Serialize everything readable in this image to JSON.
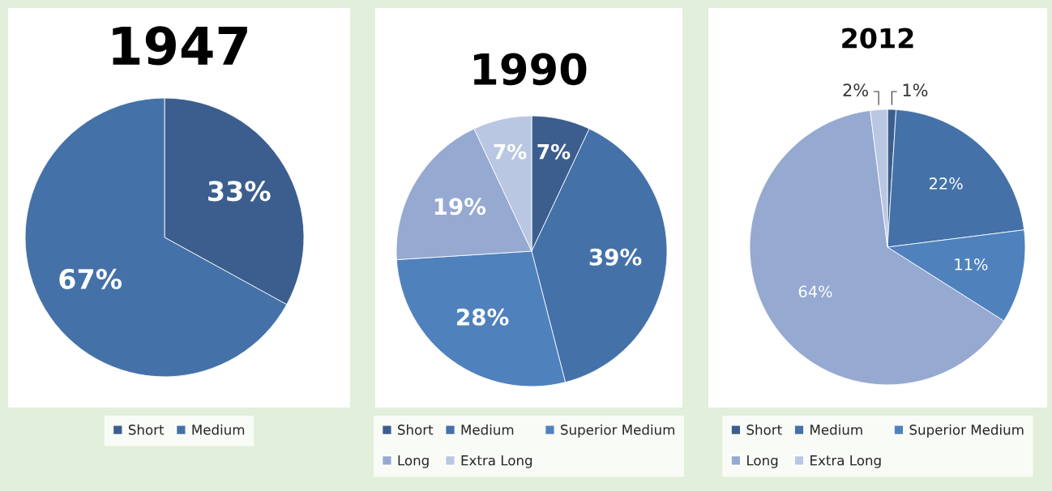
{
  "chart_data": [
    {
      "type": "pie",
      "title": "1947",
      "categories": [
        "Short",
        "Medium"
      ],
      "values": [
        33,
        67
      ],
      "colors": [
        "#3b5e8e",
        "#4471a8"
      ],
      "value_labels": [
        "33%",
        "67%"
      ],
      "legend": "bottom"
    },
    {
      "type": "pie",
      "title": "1990",
      "categories": [
        "Short",
        "Medium",
        "Superior Medium",
        "Long",
        "Extra Long"
      ],
      "values": [
        7,
        39,
        28,
        19,
        7
      ],
      "colors": [
        "#3b5e8e",
        "#4471a8",
        "#4f81bd",
        "#95a9d1",
        "#b9c7e3"
      ],
      "value_labels": [
        "7%",
        "39%",
        "28%",
        "19%",
        "7%"
      ],
      "legend": "bottom"
    },
    {
      "type": "pie",
      "title": "2012",
      "categories": [
        "Short",
        "Medium",
        "Superior Medium",
        "Long",
        "Extra Long"
      ],
      "values": [
        1,
        22,
        11,
        64,
        2
      ],
      "colors": [
        "#3b5e8e",
        "#4471a8",
        "#4f81bd",
        "#95a9d1",
        "#b9c7e3"
      ],
      "value_labels": [
        "1%",
        "22%",
        "11%",
        "64%",
        "2%"
      ],
      "legend": "bottom"
    }
  ]
}
